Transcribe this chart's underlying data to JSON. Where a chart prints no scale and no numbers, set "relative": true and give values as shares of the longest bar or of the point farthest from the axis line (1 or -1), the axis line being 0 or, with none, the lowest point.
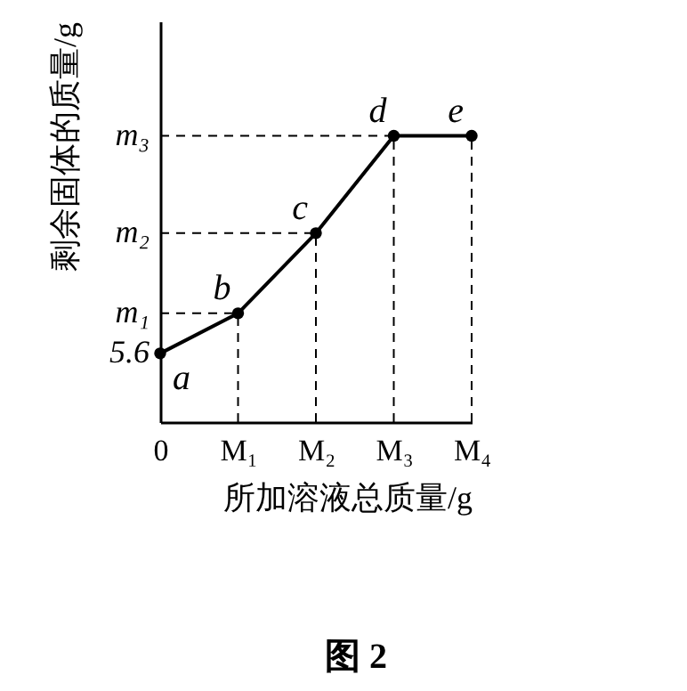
{
  "chart_data": {
    "type": "line",
    "title": "图 2",
    "xlabel": "所加溶液总质量/g",
    "ylabel": "剩余固体的质量/g",
    "relative": true,
    "marker": "circle",
    "categories": [
      "0",
      "M₁",
      "M₂",
      "M₃",
      "M₄"
    ],
    "values": [
      0.24,
      0.38,
      0.66,
      1,
      1
    ],
    "color": "#000000",
    "annotations": [
      {
        "text": "a",
        "x": "0",
        "y": 0.24
      },
      {
        "text": "b",
        "x": "M₁",
        "y": 0.38
      },
      {
        "text": "c",
        "x": "M₂",
        "y": 0.66
      },
      {
        "text": "d",
        "x": "M₃",
        "y": 1
      },
      {
        "text": "e",
        "x": "M₄",
        "y": 1
      },
      "5.6",
      "m₁",
      "m₂",
      "m₃"
    ]
  }
}
